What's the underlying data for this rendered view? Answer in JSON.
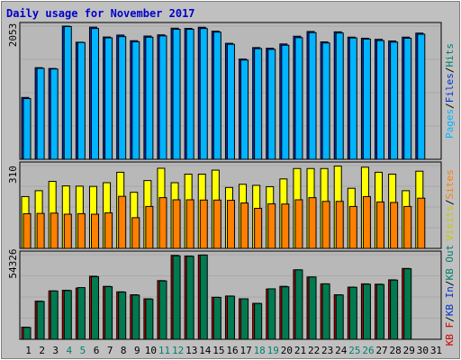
{
  "chart_data": {
    "type": "bar",
    "title": "Daily usage for November 2017",
    "categories": [
      "1",
      "2",
      "3",
      "4",
      "5",
      "6",
      "7",
      "8",
      "9",
      "10",
      "11",
      "12",
      "13",
      "14",
      "15",
      "16",
      "17",
      "18",
      "19",
      "20",
      "21",
      "22",
      "23",
      "24",
      "25",
      "26",
      "27",
      "28",
      "29",
      "30",
      "31"
    ],
    "weekend_days": [
      "4",
      "5",
      "11",
      "12",
      "18",
      "19",
      "25",
      "26"
    ],
    "panels": [
      {
        "id": "top",
        "max_label": "2053",
        "ylim": [
          0,
          2053
        ],
        "labels": [
          {
            "text": "Pages",
            "color": "#00b4ff"
          },
          {
            "text": "/",
            "color": "#000000"
          },
          {
            "text": "Files",
            "color": "#0033cc"
          },
          {
            "text": "/",
            "color": "#000000"
          },
          {
            "text": "Hits",
            "color": "#00806c"
          }
        ],
        "series": [
          {
            "color": "#0033cc",
            "values": [
              953,
              1412,
              1400,
              2053,
              1805,
              2037,
              1885,
              1915,
              1828,
              1900,
              1918,
              2021,
              2018,
              2035,
              1975,
              1788,
              1545,
              1722,
              1712,
              1778,
              1897,
              1970,
              1810,
              1965,
              1883,
              1866,
              1849,
              1824,
              1883,
              1945,
              null
            ]
          },
          {
            "color": "#00b4ff",
            "values": [
              936,
              1402,
              1392,
              2046,
              1800,
              2016,
              1872,
              1891,
              1812,
              1882,
              1902,
              2004,
              2004,
              2016,
              1960,
              1773,
              1530,
              1706,
              1694,
              1758,
              1875,
              1952,
              1793,
              1947,
              1870,
              1853,
              1830,
              1806,
              1866,
              1928,
              null
            ]
          }
        ]
      },
      {
        "id": "middle",
        "max_label": "310",
        "ylim": [
          0,
          310
        ],
        "labels": [
          {
            "text": "Visits",
            "color": "#c8c800"
          },
          {
            "text": "/",
            "color": "#000000"
          },
          {
            "text": "Sites",
            "color": "#ff7f00"
          }
        ],
        "series": [
          {
            "color": "#ffff00",
            "values": [
              194,
              216,
              251,
              234,
              233,
              232,
              246,
              285,
              210,
              254,
              300,
              246,
              278,
              278,
              293,
              228,
              240,
              236,
              231,
              260,
              299,
              299,
              299,
              308,
              225,
              304,
              285,
              278,
              216,
              289,
              null
            ]
          },
          {
            "color": "#ff7f00",
            "values": [
              130,
              131,
              132,
              128,
              130,
              128,
              133,
              195,
              115,
              157,
              190,
              182,
              182,
              181,
              181,
              180,
              170,
              150,
              167,
              166,
              182,
              190,
              176,
              176,
              157,
              194,
              174,
              172,
              157,
              188,
              null
            ]
          }
        ]
      },
      {
        "id": "bottom",
        "max_label": "54326",
        "ylim": [
          0,
          54326
        ],
        "labels": [
          {
            "text": "KB F",
            "color": "#cc0000"
          },
          {
            "text": "/",
            "color": "#000000"
          },
          {
            "text": "KB In",
            "color": "#0033cc"
          },
          {
            "text": "/",
            "color": "#000000"
          },
          {
            "text": "KB Out",
            "color": "#00806c"
          }
        ],
        "series": [
          {
            "color": "#cc0000",
            "values": [
              7800,
              24500,
              31100,
              31500,
              32900,
              40500,
              34000,
              30500,
              28600,
              26000,
              37700,
              53900,
              53500,
              54100,
              27000,
              27800,
              26000,
              23100,
              32300,
              34000,
              44600,
              40000,
              35600,
              28600,
              33500,
              35600,
              35400,
              38200,
              45500,
              null,
              null
            ]
          },
          {
            "color": "#007a50",
            "values": [
              7600,
              24300,
              31000,
              31300,
              33200,
              40200,
              33800,
              30300,
              28400,
              25800,
              37500,
              53600,
              53300,
              54100,
              26900,
              27700,
              26000,
              23000,
              32400,
              33700,
              44600,
              40000,
              35600,
              28500,
              33400,
              35400,
              35200,
              38000,
              45300,
              null,
              null
            ]
          }
        ]
      }
    ],
    "grid": true,
    "legend": "right-vertical"
  }
}
